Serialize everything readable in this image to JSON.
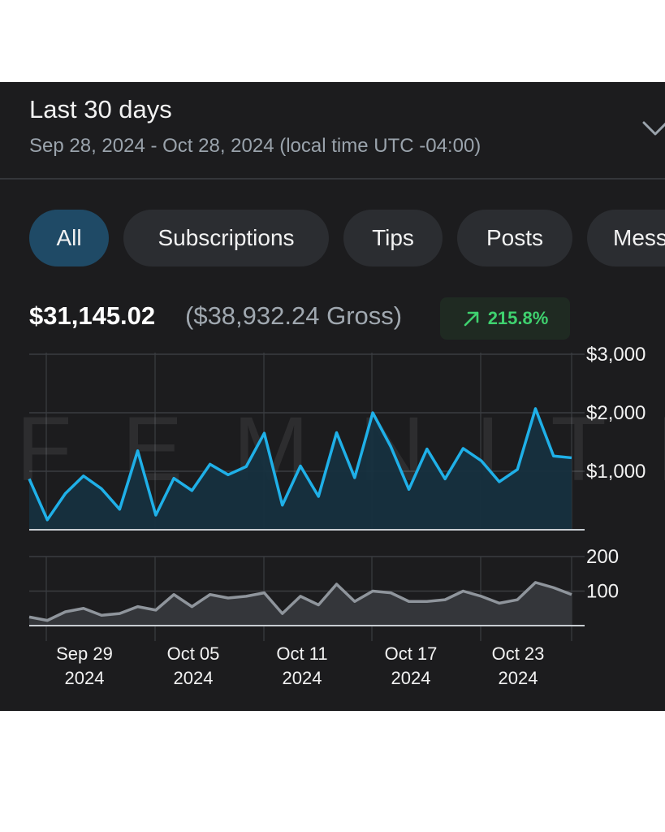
{
  "header": {
    "title": "Last 30 days",
    "date_range": "Sep 28, 2024 - Oct 28, 2024 (local time UTC -04:00)"
  },
  "filters": [
    {
      "label": "All",
      "active": true
    },
    {
      "label": "Subscriptions",
      "active": false
    },
    {
      "label": "Tips",
      "active": false
    },
    {
      "label": "Posts",
      "active": false
    },
    {
      "label": "Mess",
      "active": false
    }
  ],
  "summary": {
    "net": "$31,145.02",
    "gross": "($38,932.24 Gross)",
    "change": "215.8%",
    "change_direction": "up",
    "change_color": "#3fd26f"
  },
  "watermark": "FEMNITE",
  "colors": {
    "earnings_line": "#1fb0e8",
    "earnings_fill": "#16303f",
    "count_line": "#8f959c",
    "count_fill": "#34363a",
    "active_chip": "#1f4a66"
  },
  "chart_data": [
    {
      "type": "area",
      "name": "earnings",
      "x": [
        "Sep 28",
        "Sep 29",
        "Sep 30",
        "Oct 01",
        "Oct 02",
        "Oct 03",
        "Oct 04",
        "Oct 05",
        "Oct 06",
        "Oct 07",
        "Oct 08",
        "Oct 09",
        "Oct 10",
        "Oct 11",
        "Oct 12",
        "Oct 13",
        "Oct 14",
        "Oct 15",
        "Oct 16",
        "Oct 17",
        "Oct 18",
        "Oct 19",
        "Oct 20",
        "Oct 21",
        "Oct 22",
        "Oct 23",
        "Oct 24",
        "Oct 25",
        "Oct 26",
        "Oct 27",
        "Oct 28"
      ],
      "values": [
        870,
        170,
        620,
        920,
        700,
        350,
        1350,
        250,
        880,
        670,
        1120,
        940,
        1080,
        1650,
        420,
        1090,
        570,
        1660,
        890,
        2000,
        1420,
        690,
        1380,
        870,
        1390,
        1180,
        820,
        1030,
        2070,
        1260,
        1230
      ],
      "ylim": [
        0,
        3000
      ],
      "y_ticks": [
        "$3,000",
        "$2,000",
        "$1,000"
      ],
      "grid": true
    },
    {
      "type": "area",
      "name": "count",
      "x": [
        "Sep 28",
        "Sep 29",
        "Sep 30",
        "Oct 01",
        "Oct 02",
        "Oct 03",
        "Oct 04",
        "Oct 05",
        "Oct 06",
        "Oct 07",
        "Oct 08",
        "Oct 09",
        "Oct 10",
        "Oct 11",
        "Oct 12",
        "Oct 13",
        "Oct 14",
        "Oct 15",
        "Oct 16",
        "Oct 17",
        "Oct 18",
        "Oct 19",
        "Oct 20",
        "Oct 21",
        "Oct 22",
        "Oct 23",
        "Oct 24",
        "Oct 25",
        "Oct 26",
        "Oct 27",
        "Oct 28"
      ],
      "values": [
        25,
        15,
        40,
        50,
        30,
        35,
        55,
        45,
        90,
        55,
        90,
        80,
        85,
        95,
        35,
        85,
        60,
        120,
        70,
        100,
        95,
        70,
        70,
        75,
        100,
        85,
        65,
        75,
        125,
        110,
        90
      ],
      "ylim": [
        0,
        200
      ],
      "y_ticks": [
        "200",
        "100"
      ],
      "grid": true
    }
  ],
  "x_axis": {
    "ticks": [
      {
        "date": "Sep 29",
        "year": "2024"
      },
      {
        "date": "Oct 05",
        "year": "2024"
      },
      {
        "date": "Oct 11",
        "year": "2024"
      },
      {
        "date": "Oct 17",
        "year": "2024"
      },
      {
        "date": "Oct 23",
        "year": "2024"
      }
    ]
  }
}
